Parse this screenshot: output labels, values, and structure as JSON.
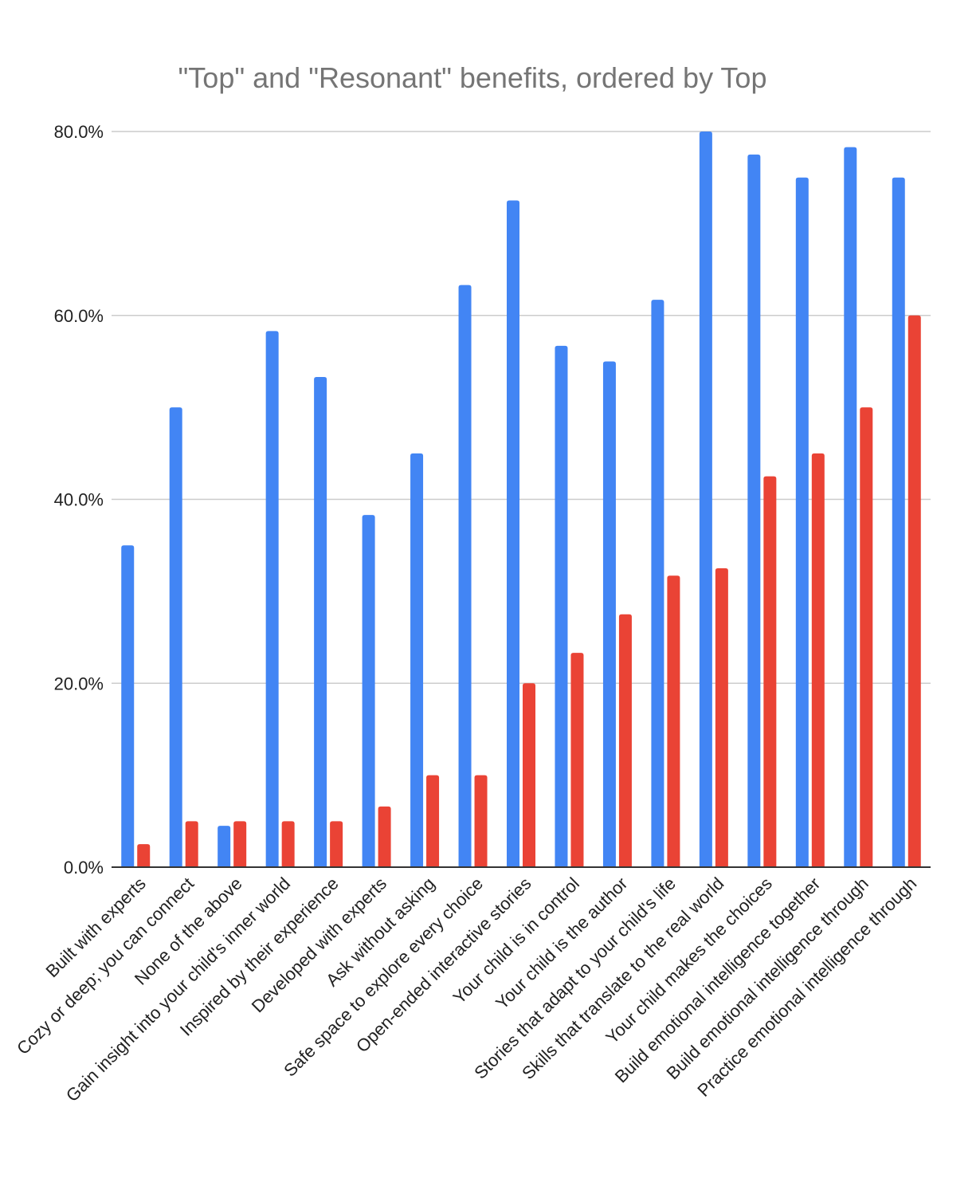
{
  "chart_data": {
    "type": "bar",
    "title": "\"Top\" and \"Resonant\" benefits, ordered by Top",
    "xlabel": "",
    "ylabel": "",
    "ylim": [
      0,
      80
    ],
    "yticks": [
      0,
      20,
      40,
      60,
      80
    ],
    "ytick_labels": [
      "0.0%",
      "20.0%",
      "40.0%",
      "60.0%",
      "80.0%"
    ],
    "grid": true,
    "categories": [
      "Built with experts",
      "Cozy or deep; you can connect",
      "None of the above",
      "Gain insight into your child's inner world",
      "Inspired by their experience",
      "Developed with experts",
      "Ask without asking",
      "Safe space to explore every choice",
      "Open-ended interactive stories",
      "Your child is in control",
      "Your child is the author",
      "Stories that adapt to your child's life",
      "Skills that translate to the real world",
      "Your child makes the choices",
      "Build emotional intelligence together",
      "Build emotional intelligence through",
      "Practice emotional intelligence through"
    ],
    "series": [
      {
        "name": "Resonant",
        "color": "#4285f4",
        "values": [
          35,
          50,
          4.5,
          58.3,
          53.3,
          38.3,
          45,
          63.3,
          72.5,
          56.7,
          55,
          61.7,
          80,
          77.5,
          75,
          78.3,
          75
        ]
      },
      {
        "name": "Top",
        "color": "#ea4335",
        "values": [
          2.5,
          5,
          5,
          5,
          5,
          6.6,
          10,
          10,
          20,
          23.3,
          27.5,
          31.7,
          32.5,
          42.5,
          45,
          50,
          60
        ]
      }
    ]
  }
}
